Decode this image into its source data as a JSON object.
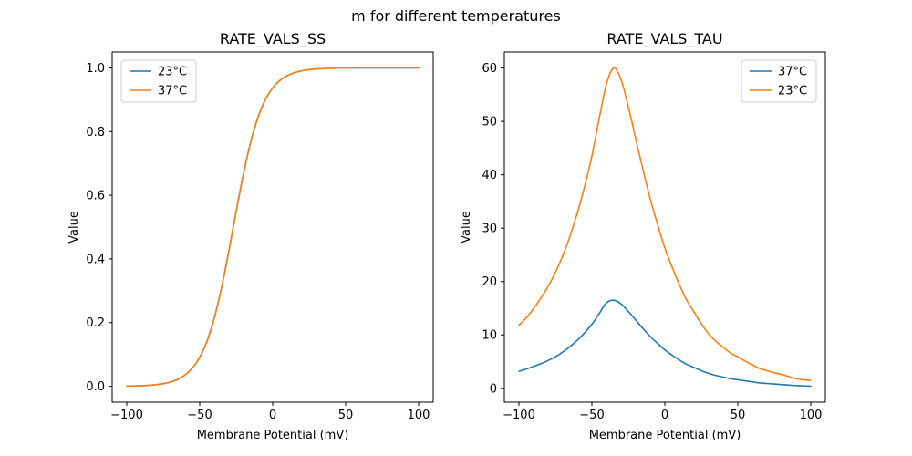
{
  "figure": {
    "suptitle": "m for different temperatures",
    "background": "#ffffff",
    "colors": {
      "blue": "#1f77b4",
      "orange": "#ff7f0e"
    }
  },
  "chart_data": [
    {
      "type": "line",
      "title": "RATE_VALS_SS",
      "xlabel": "Membrane Potential (mV)",
      "ylabel": "Value",
      "xlim": [
        -110,
        110
      ],
      "ylim": [
        -0.05,
        1.05
      ],
      "xticks": [
        -100,
        -50,
        0,
        50,
        100
      ],
      "xtick_labels": [
        "−100",
        "−50",
        "0",
        "50",
        "100"
      ],
      "yticks": [
        0.0,
        0.2,
        0.4,
        0.6,
        0.8,
        1.0
      ],
      "ytick_labels": [
        "0.0",
        "0.2",
        "0.4",
        "0.6",
        "0.8",
        "1.0"
      ],
      "grid": false,
      "legend_position": "upper-left",
      "x": [
        -100,
        -95,
        -90,
        -85,
        -80,
        -75,
        -70,
        -65,
        -60,
        -55,
        -50,
        -45,
        -40,
        -35,
        -30,
        -25,
        -20,
        -15,
        -10,
        -5,
        0,
        5,
        10,
        15,
        20,
        25,
        30,
        35,
        40,
        45,
        50,
        55,
        60,
        65,
        70,
        75,
        80,
        85,
        90,
        95,
        100
      ],
      "series": [
        {
          "name": "23°C",
          "color": "#1f77b4",
          "values": [
            0.0007,
            0.0011,
            0.0018,
            0.003,
            0.005,
            0.0082,
            0.0134,
            0.0219,
            0.0356,
            0.0573,
            0.0911,
            0.1418,
            0.2142,
            0.31,
            0.4256,
            0.5498,
            0.6682,
            0.7685,
            0.8455,
            0.9002,
            0.937,
            0.9608,
            0.9759,
            0.9852,
            0.991,
            0.9945,
            0.9967,
            0.998,
            0.9988,
            0.9993,
            0.9996,
            0.9997,
            0.9998,
            0.9999,
            0.9999,
            1.0,
            1.0,
            1.0,
            1.0,
            1.0,
            1.0
          ]
        },
        {
          "name": "37°C",
          "color": "#ff7f0e",
          "values": [
            0.0007,
            0.0011,
            0.0018,
            0.003,
            0.005,
            0.0082,
            0.0134,
            0.0219,
            0.0356,
            0.0573,
            0.0911,
            0.1418,
            0.2142,
            0.31,
            0.4256,
            0.5498,
            0.6682,
            0.7685,
            0.8455,
            0.9002,
            0.937,
            0.9608,
            0.9759,
            0.9852,
            0.991,
            0.9945,
            0.9967,
            0.998,
            0.9988,
            0.9993,
            0.9996,
            0.9997,
            0.9998,
            0.9999,
            0.9999,
            1.0,
            1.0,
            1.0,
            1.0,
            1.0,
            1.0
          ]
        }
      ]
    },
    {
      "type": "line",
      "title": "RATE_VALS_TAU",
      "xlabel": "Membrane Potential (mV)",
      "ylabel": "Value",
      "xlim": [
        -110,
        110
      ],
      "ylim": [
        -2.6,
        63
      ],
      "xticks": [
        -100,
        -50,
        0,
        50,
        100
      ],
      "xtick_labels": [
        "−100",
        "−50",
        "0",
        "50",
        "100"
      ],
      "yticks": [
        0,
        10,
        20,
        30,
        40,
        50,
        60
      ],
      "ytick_labels": [
        "0",
        "10",
        "20",
        "30",
        "40",
        "50",
        "60"
      ],
      "grid": false,
      "legend_position": "upper-right",
      "x": [
        -100,
        -95,
        -90,
        -85,
        -80,
        -75,
        -70,
        -65,
        -60,
        -55,
        -50,
        -45,
        -40,
        -35,
        -30,
        -25,
        -20,
        -15,
        -10,
        -5,
        0,
        5,
        10,
        15,
        20,
        25,
        30,
        35,
        40,
        45,
        50,
        55,
        60,
        65,
        70,
        75,
        80,
        85,
        90,
        95,
        100
      ],
      "series": [
        {
          "name": "37°C",
          "color": "#1f77b4",
          "values": [
            3.2,
            3.6,
            4.1,
            4.6,
            5.2,
            5.9,
            6.8,
            7.8,
            9.0,
            10.4,
            12.0,
            14.0,
            16.0,
            16.5,
            15.8,
            14.4,
            12.8,
            11.2,
            9.7,
            8.4,
            7.2,
            6.2,
            5.3,
            4.5,
            3.9,
            3.3,
            2.8,
            2.4,
            2.1,
            1.8,
            1.6,
            1.4,
            1.2,
            1.0,
            0.9,
            0.8,
            0.7,
            0.6,
            0.5,
            0.45,
            0.4
          ]
        },
        {
          "name": "23°C",
          "color": "#ff7f0e",
          "values": [
            11.8,
            13.2,
            14.9,
            16.9,
            19.1,
            21.7,
            24.8,
            28.5,
            32.8,
            37.8,
            43.5,
            50.5,
            57.0,
            60.0,
            57.8,
            52.7,
            46.8,
            41.0,
            35.5,
            30.7,
            26.3,
            22.7,
            19.4,
            16.5,
            14.3,
            12.1,
            10.2,
            8.8,
            7.7,
            6.6,
            5.9,
            5.1,
            4.4,
            3.7,
            3.3,
            2.9,
            2.6,
            2.2,
            1.8,
            1.6,
            1.5
          ]
        }
      ]
    }
  ]
}
